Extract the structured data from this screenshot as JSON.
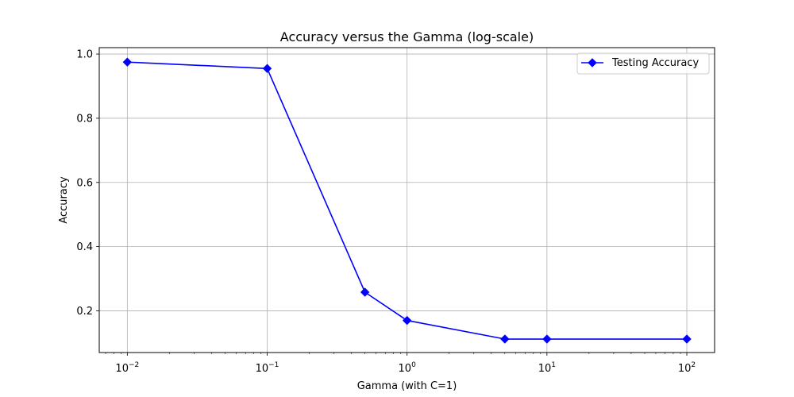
{
  "chart_data": {
    "type": "line",
    "title": "Accuracy versus the Gamma (log-scale)",
    "xlabel": "Gamma (with C=1)",
    "ylabel": "Accuracy",
    "xscale": "log",
    "xlim": [
      0.0063,
      158
    ],
    "ylim": [
      0.07,
      1.02
    ],
    "grid": true,
    "legend_position": "top-right",
    "x_ticks": [
      0.01,
      0.1,
      1,
      10,
      100
    ],
    "x_tick_labels": [
      {
        "base": "10",
        "exp": "−2"
      },
      {
        "base": "10",
        "exp": "−1"
      },
      {
        "base": "10",
        "exp": "0"
      },
      {
        "base": "10",
        "exp": "1"
      },
      {
        "base": "10",
        "exp": "2"
      }
    ],
    "y_ticks": [
      0.2,
      0.4,
      0.6,
      0.8,
      1.0
    ],
    "y_tick_labels": [
      "0.2",
      "0.4",
      "0.6",
      "0.8",
      "1.0"
    ],
    "series": [
      {
        "name": "Testing Accuracy",
        "color": "#0000ff",
        "marker": "diamond",
        "x": [
          0.01,
          0.1,
          0.5,
          1,
          5,
          10,
          100
        ],
        "y": [
          0.975,
          0.955,
          0.258,
          0.17,
          0.112,
          0.112,
          0.112
        ]
      }
    ]
  }
}
